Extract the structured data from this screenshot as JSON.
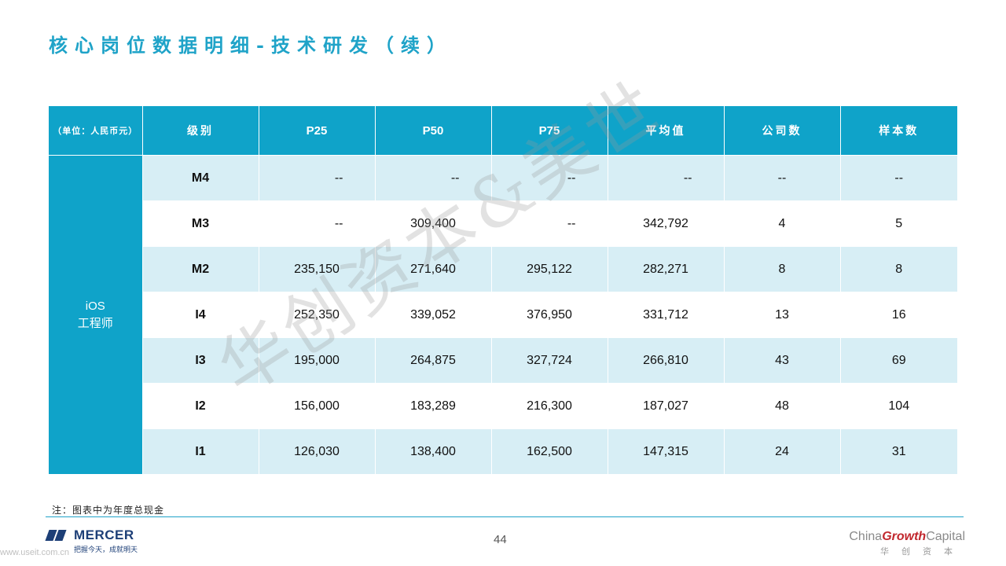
{
  "title": "核心岗位数据明细-技术研发（续）",
  "table": {
    "headers": [
      "（单位：人民币元）",
      "级别",
      "P25",
      "P50",
      "P75",
      "平均值",
      "公司数",
      "样本数"
    ],
    "group_label_line1": "iOS",
    "group_label_line2": "工程师",
    "rows": [
      [
        "M4",
        "--",
        "--",
        "--",
        "--",
        "--",
        "--"
      ],
      [
        "M3",
        "--",
        "309,400",
        "--",
        "342,792",
        "4",
        "5"
      ],
      [
        "M2",
        "235,150",
        "271,640",
        "295,122",
        "282,271",
        "8",
        "8"
      ],
      [
        "I4",
        "252,350",
        "339,052",
        "376,950",
        "331,712",
        "13",
        "16"
      ],
      [
        "I3",
        "195,000",
        "264,875",
        "327,724",
        "266,810",
        "43",
        "69"
      ],
      [
        "I2",
        "156,000",
        "183,289",
        "216,300",
        "187,027",
        "48",
        "104"
      ],
      [
        "I1",
        "126,030",
        "138,400",
        "162,500",
        "147,315",
        "24",
        "31"
      ]
    ]
  },
  "watermark": "华创资本&美世",
  "note": "注：图表中为年度总现金",
  "page_number": "44",
  "footer": {
    "mercer_name": "MERCER",
    "mercer_tagline": "把握今天，成就明天",
    "url": "www.useit.com.cn",
    "cgc_prefix": "China",
    "cgc_growth": "Growth",
    "cgc_suffix": "Capital",
    "cgc_chinese": "华创资本"
  },
  "colors": {
    "accent": "#0fa3c9",
    "row_light": "#d7eef5",
    "mercer_blue": "#1d3f77",
    "cgc_red": "#c1272d"
  }
}
